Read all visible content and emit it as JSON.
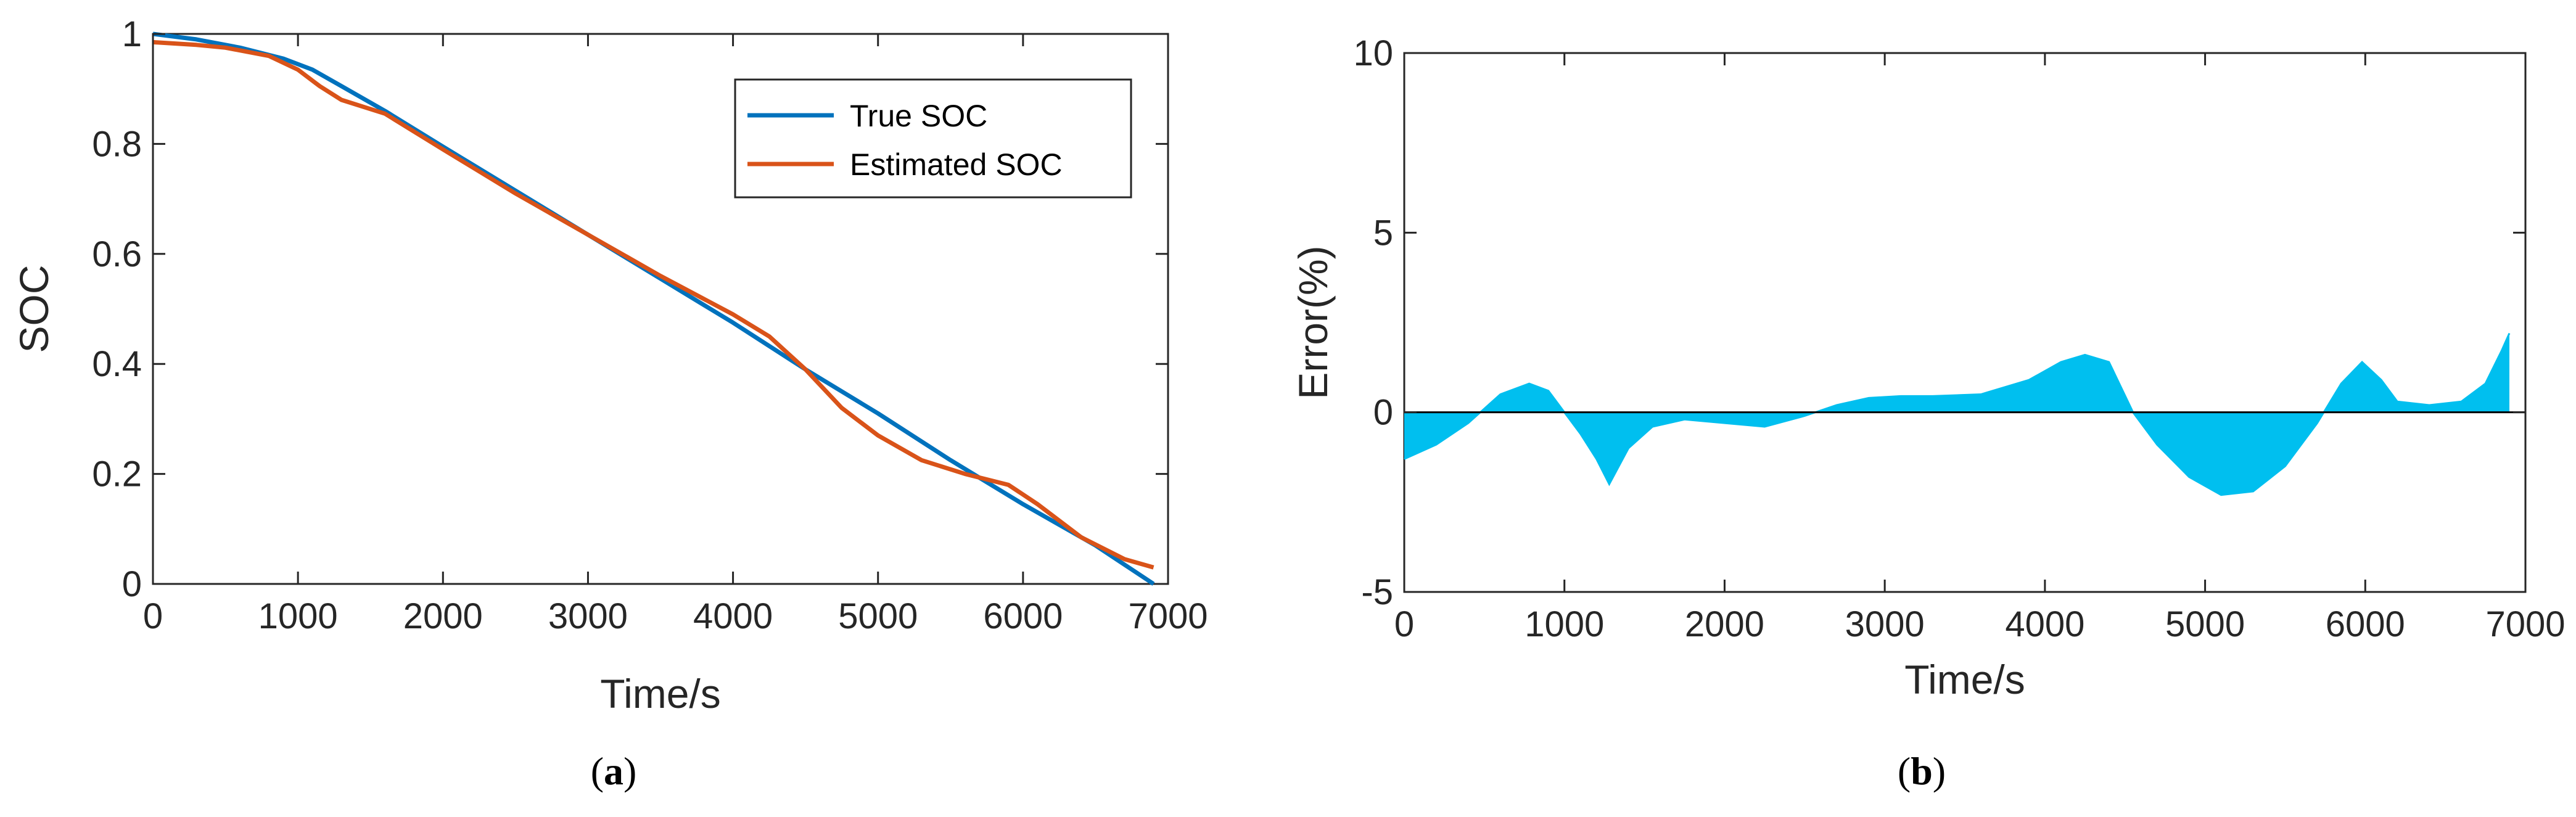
{
  "colors": {
    "true_soc": "#0072BD",
    "estimated_soc": "#D95319",
    "error_fill": "#00BFEF",
    "axis": "#262626",
    "zero_line": "#000000"
  },
  "chart_data": [
    {
      "id": "a",
      "type": "line",
      "panel_label": {
        "open": "(",
        "letter": "a",
        "close": ")"
      },
      "xlabel": "Time/s",
      "ylabel": "SOC",
      "xlim": [
        0,
        7000
      ],
      "ylim": [
        0,
        1
      ],
      "xticks": [
        0,
        1000,
        2000,
        3000,
        4000,
        5000,
        6000,
        7000
      ],
      "yticks": [
        0,
        0.2,
        0.4,
        0.6,
        0.8,
        1
      ],
      "xtick_labels": [
        "0",
        "1000",
        "2000",
        "3000",
        "4000",
        "5000",
        "6000",
        "7000"
      ],
      "ytick_labels": [
        "0",
        "0.2",
        "0.4",
        "0.6",
        "0.8",
        "1"
      ],
      "legend_position": "top-right",
      "grid": false,
      "series": [
        {
          "name": "True SOC",
          "color_key": "true_soc",
          "x": [
            0,
            300,
            600,
            900,
            1100,
            1300,
            1600,
            2000,
            2500,
            3000,
            3500,
            4000,
            4500,
            5000,
            5500,
            6000,
            6500,
            6900
          ],
          "y": [
            1.0,
            0.99,
            0.975,
            0.955,
            0.935,
            0.905,
            0.86,
            0.795,
            0.715,
            0.635,
            0.555,
            0.475,
            0.39,
            0.31,
            0.225,
            0.145,
            0.07,
            0.0
          ]
        },
        {
          "name": "Estimated SOC",
          "color_key": "estimated_soc",
          "x": [
            0,
            300,
            500,
            800,
            1000,
            1150,
            1300,
            1600,
            2000,
            2500,
            3000,
            3500,
            4000,
            4250,
            4500,
            4750,
            5000,
            5300,
            5600,
            5900,
            6100,
            6400,
            6700,
            6900
          ],
          "y": [
            0.985,
            0.98,
            0.975,
            0.96,
            0.935,
            0.905,
            0.88,
            0.855,
            0.79,
            0.71,
            0.635,
            0.56,
            0.49,
            0.45,
            0.39,
            0.32,
            0.27,
            0.225,
            0.2,
            0.18,
            0.145,
            0.085,
            0.045,
            0.03
          ]
        }
      ]
    },
    {
      "id": "b",
      "type": "area",
      "panel_label": {
        "open": "(",
        "letter": "b",
        "close": ")"
      },
      "xlabel": "Time/s",
      "ylabel": "Error(%)",
      "xlim": [
        0,
        7000
      ],
      "ylim": [
        -5,
        10
      ],
      "xticks": [
        0,
        1000,
        2000,
        3000,
        4000,
        5000,
        6000,
        7000
      ],
      "yticks": [
        -5,
        0,
        5,
        10
      ],
      "xtick_labels": [
        "0",
        "1000",
        "2000",
        "3000",
        "4000",
        "5000",
        "6000",
        "7000"
      ],
      "ytick_labels": [
        "-5",
        "0",
        "5",
        "10"
      ],
      "grid": false,
      "series": [
        {
          "name": "Error",
          "color_key": "error_fill",
          "x": [
            0,
            200,
            400,
            600,
            780,
            900,
            1000,
            1100,
            1200,
            1280,
            1400,
            1550,
            1750,
            2000,
            2250,
            2500,
            2700,
            2900,
            3100,
            3300,
            3600,
            3900,
            4100,
            4250,
            4400,
            4550,
            4700,
            4900,
            5100,
            5300,
            5500,
            5700,
            5850,
            5980,
            6100,
            6200,
            6400,
            6600,
            6750,
            6850,
            6900
          ],
          "y": [
            -1.3,
            -0.9,
            -0.3,
            0.5,
            0.8,
            0.6,
            0.0,
            -0.6,
            -1.3,
            -2.0,
            -1.0,
            -0.4,
            -0.2,
            -0.3,
            -0.4,
            -0.1,
            0.2,
            0.4,
            0.45,
            0.45,
            0.5,
            0.9,
            1.4,
            1.6,
            1.4,
            0.0,
            -0.9,
            -1.8,
            -2.3,
            -2.2,
            -1.5,
            -0.3,
            0.8,
            1.4,
            0.9,
            0.3,
            0.2,
            0.3,
            0.8,
            1.7,
            2.2
          ]
        }
      ]
    }
  ]
}
